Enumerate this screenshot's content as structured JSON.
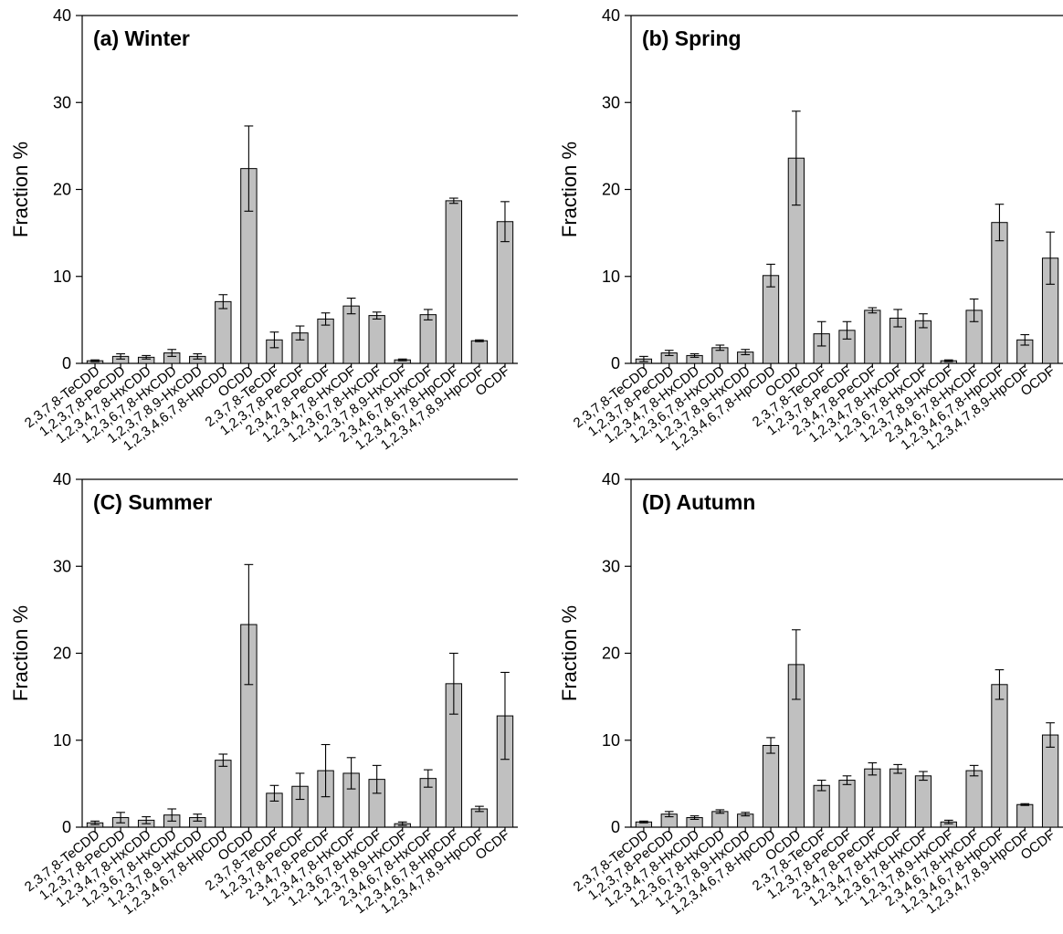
{
  "chart_data": [
    {
      "type": "bar",
      "title": "(a) Winter",
      "xlabel": "",
      "ylabel": "Fraction %",
      "ylim": [
        0,
        40
      ],
      "yticks": [
        0,
        10,
        20,
        30,
        40
      ],
      "categories": [
        "2,3,7,8-TeCDD",
        "1,2,3,7,8-PeCDD",
        "1,2,3,4,7,8-HxCDD",
        "1,2,3,6,7,8-HxCDD",
        "1,2,3,7,8,9-HxCDD",
        "1,2,3,4,6,7,8-HpCDD",
        "OCDD",
        "2,3,7,8-TeCDF",
        "1,2,3,7,8-PeCDF",
        "2,3,4,7,8-PeCDF",
        "1,2,3,4,7,8-HxCDF",
        "1,2,3,6,7,8-HxCDF",
        "1,2,3,7,8,9-HxCDF",
        "2,3,4,6,7,8-HxCDF",
        "1,2,3,4,6,7,8-HpCDF",
        "1,2,3,4,7,8,9-HpCDF",
        "OCDF"
      ],
      "values": [
        0.3,
        0.8,
        0.7,
        1.2,
        0.8,
        7.1,
        22.4,
        2.7,
        3.5,
        5.1,
        6.6,
        5.5,
        0.4,
        5.6,
        18.7,
        2.6,
        16.3
      ],
      "errors": [
        0.1,
        0.3,
        0.2,
        0.4,
        0.3,
        0.8,
        4.9,
        0.9,
        0.8,
        0.7,
        0.9,
        0.4,
        0.1,
        0.6,
        0.3,
        0.1,
        2.3
      ]
    },
    {
      "type": "bar",
      "title": "(b) Spring",
      "xlabel": "",
      "ylabel": "Fraction %",
      "ylim": [
        0,
        40
      ],
      "yticks": [
        0,
        10,
        20,
        30,
        40
      ],
      "categories": [
        "2,3,7,8-TeCDD",
        "1,2,3,7,8-PeCDD",
        "1,2,3,4,7,8-HxCDD",
        "1,2,3,6,7,8-HxCDD",
        "1,2,3,7,8,9-HxCDD",
        "1,2,3,4,6,7,8-HpCDD",
        "OCDD",
        "2,3,7,8-TeCDF",
        "1,2,3,7,8-PeCDF",
        "2,3,4,7,8-PeCDF",
        "1,2,3,4,7,8-HxCDF",
        "1,2,3,6,7,8-HxCDF",
        "1,2,3,7,8,9-HxCDF",
        "2,3,4,6,7,8-HxCDF",
        "1,2,3,4,6,7,8-HpCDF",
        "1,2,3,4,7,8,9-HpCDF",
        "OCDF"
      ],
      "values": [
        0.5,
        1.2,
        0.9,
        1.8,
        1.3,
        10.1,
        23.6,
        3.4,
        3.8,
        6.1,
        5.2,
        4.9,
        0.3,
        6.1,
        16.2,
        2.7,
        12.1
      ],
      "errors": [
        0.3,
        0.3,
        0.2,
        0.3,
        0.3,
        1.3,
        5.4,
        1.4,
        1.0,
        0.3,
        1.0,
        0.8,
        0.1,
        1.3,
        2.1,
        0.6,
        3.0
      ]
    },
    {
      "type": "bar",
      "title": "(C) Summer",
      "xlabel": "",
      "ylabel": "Fraction %",
      "ylim": [
        0,
        40
      ],
      "yticks": [
        0,
        10,
        20,
        30,
        40
      ],
      "categories": [
        "2,3,7,8-TeCDD",
        "1,2,3,7,8-PeCDD",
        "1,2,3,4,7,8-HxCDD",
        "1,2,3,6,7,8-HxCDD",
        "1,2,3,7,8,9-HxCDD",
        "1,2,3,4,6,7,8-HpCDD",
        "OCDD",
        "2,3,7,8-TeCDF",
        "1,2,3,7,8-PeCDF",
        "2,3,4,7,8-PeCDF",
        "1,2,3,4,7,8-HxCDF",
        "1,2,3,6,7,8-HxCDF",
        "1,2,3,7,8,9-HxCDF",
        "2,3,4,6,7,8-HxCDF",
        "1,2,3,4,6,7,8-HpCDF",
        "1,2,3,4,7,8,9-HpCDF",
        "OCDF"
      ],
      "values": [
        0.5,
        1.1,
        0.8,
        1.4,
        1.1,
        7.7,
        23.3,
        3.9,
        4.7,
        6.5,
        6.2,
        5.5,
        0.4,
        5.6,
        16.5,
        2.1,
        12.8
      ],
      "errors": [
        0.2,
        0.6,
        0.4,
        0.7,
        0.4,
        0.7,
        6.9,
        0.9,
        1.5,
        3.0,
        1.8,
        1.6,
        0.2,
        1.0,
        3.5,
        0.3,
        5.0
      ]
    },
    {
      "type": "bar",
      "title": "(D) Autumn",
      "xlabel": "",
      "ylabel": "Fraction %",
      "ylim": [
        0,
        40
      ],
      "yticks": [
        0,
        10,
        20,
        30,
        40
      ],
      "categories": [
        "2,3,7,8-TeCDD",
        "1,2,3,7,8-PeCDD",
        "1,2,3,4,7,8-HxCDD",
        "1,2,3,6,7,8-HxCDD",
        "1,2,3,7,8,9-HxCDD",
        "1,2,3,4,6,7,8-HpCDD",
        "OCDD",
        "2,3,7,8-TeCDF",
        "1,2,3,7,8-PeCDF",
        "2,3,4,7,8-PeCDF",
        "1,2,3,4,7,8-HxCDF",
        "1,2,3,6,7,8-HxCDF",
        "1,2,3,7,8,9-HxCDF",
        "2,3,4,6,7,8-HxCDF",
        "1,2,3,4,6,7,8-HpCDF",
        "1,2,3,4,7,8,9-HpCDF",
        "OCDF"
      ],
      "values": [
        0.6,
        1.5,
        1.1,
        1.8,
        1.5,
        9.4,
        18.7,
        4.8,
        5.4,
        6.7,
        6.7,
        5.9,
        0.6,
        6.5,
        16.4,
        2.6,
        10.6
      ],
      "errors": [
        0.1,
        0.3,
        0.2,
        0.2,
        0.2,
        0.9,
        4.0,
        0.6,
        0.5,
        0.7,
        0.5,
        0.5,
        0.2,
        0.6,
        1.7,
        0.1,
        1.4
      ]
    }
  ]
}
